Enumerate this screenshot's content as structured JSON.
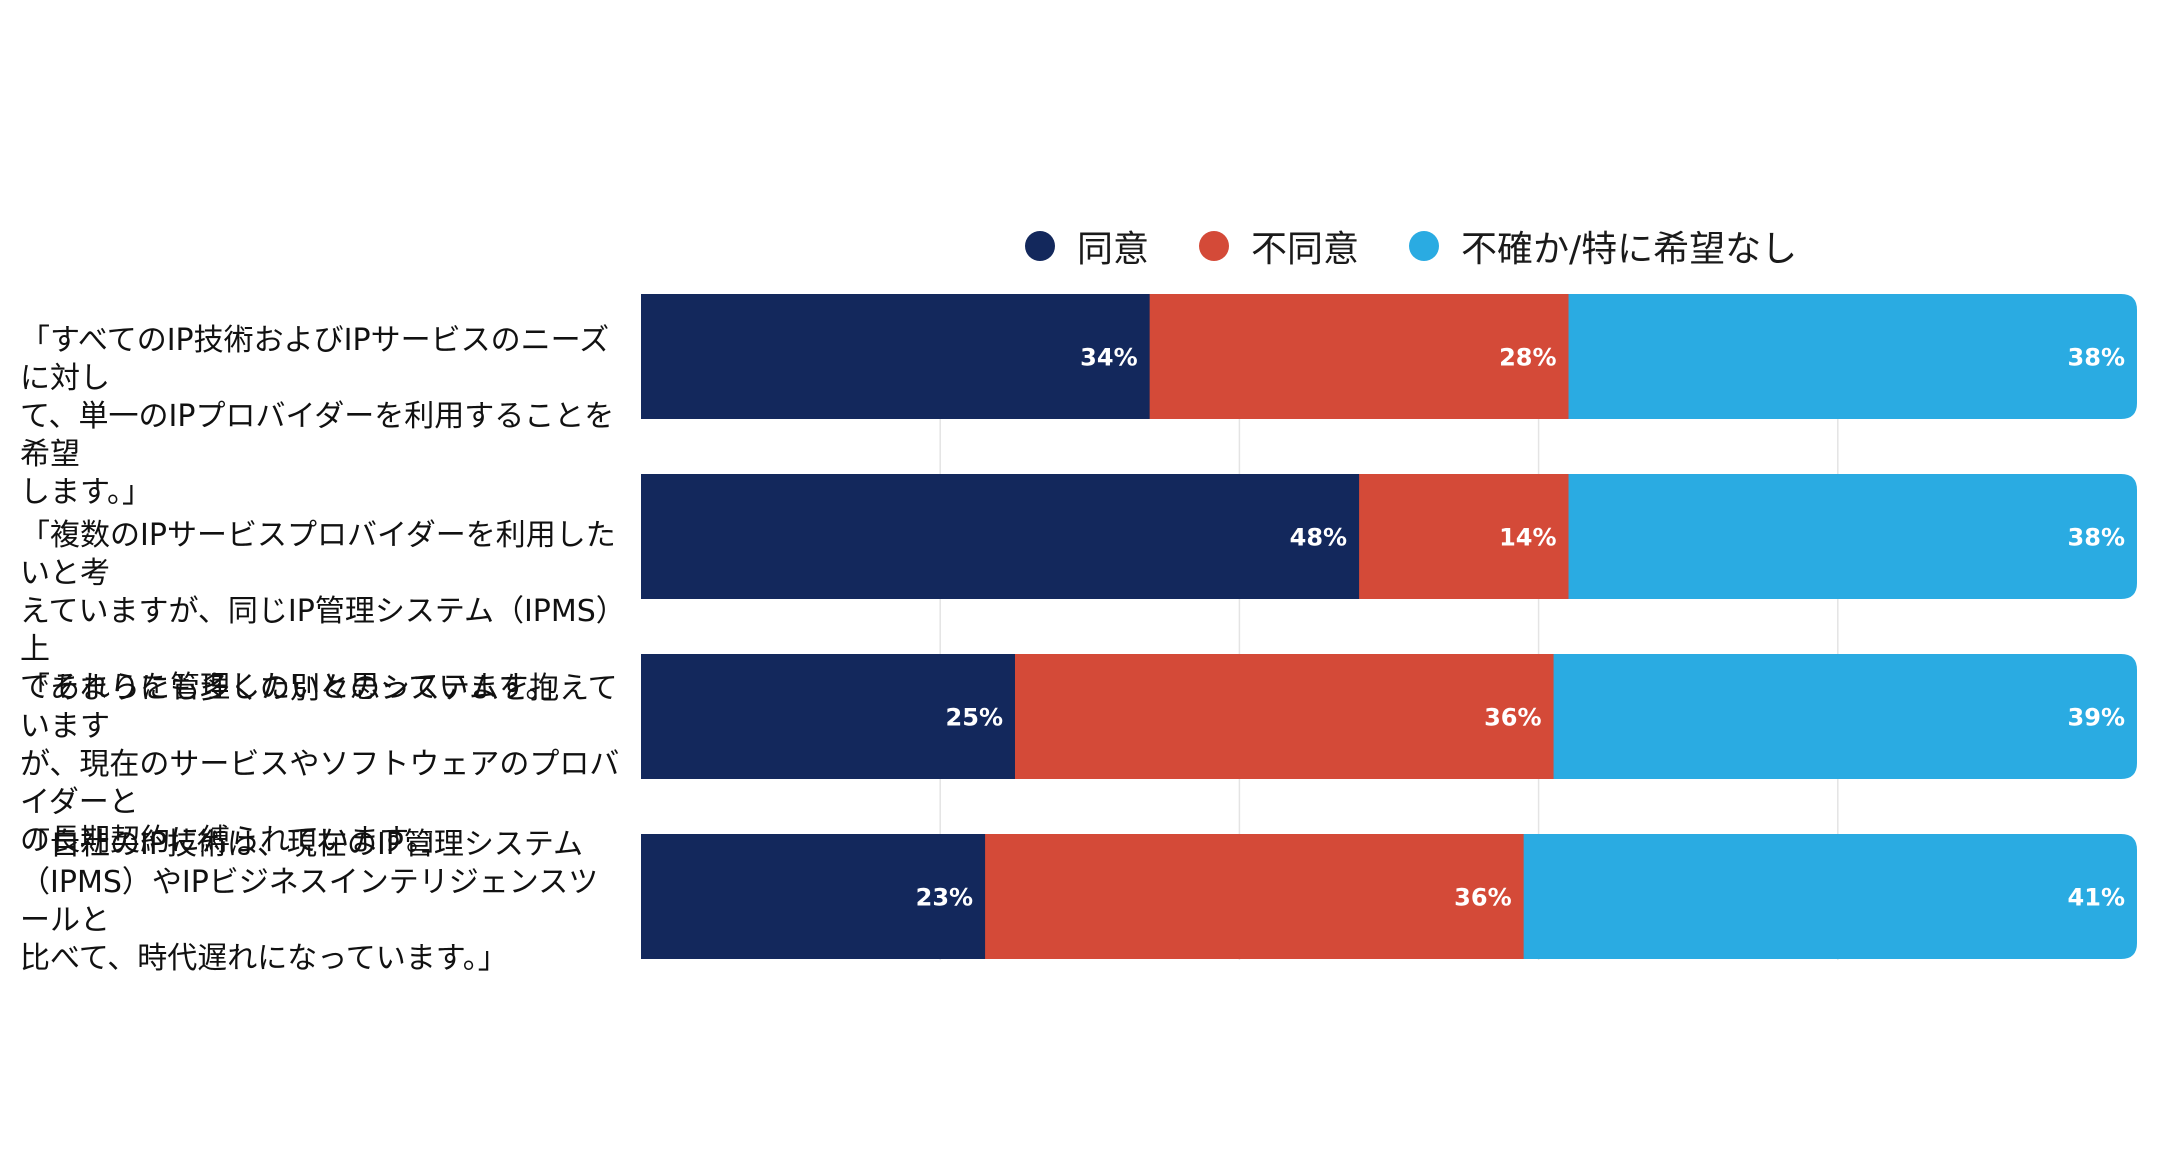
{
  "chart_data": {
    "type": "bar",
    "orientation": "horizontal",
    "stacked": true,
    "legend_position": "top",
    "grid": true,
    "xlim": [
      0,
      100
    ],
    "categories": [
      "「すべてのIP技術およびIPサービスのニーズに対し\nて、単一のIPプロバイダーを利用することを希望\nします。」",
      "「複数のIPサービスプロバイダーを利用したいと考\nえていますが、同じIP管理システム（IPMS）上\nでそれらを管理したいと思っています。」",
      "「あまりにも多くの別々のシステムを抱えています\nが、現在のサービスやソフトウェアのプロバイダーと\nの長期契約に縛られています。」",
      "「自社のIP技術は、現在のIP管理システム\n（IPMS）やIPビジネスインテリジェンスツールと\n比べて、時代遅れになっています。」"
    ],
    "series": [
      {
        "name": "同意",
        "color": "#13285c",
        "values": [
          34,
          48,
          25,
          23
        ]
      },
      {
        "name": "不同意",
        "color": "#d44a38",
        "values": [
          28,
          14,
          36,
          36
        ]
      },
      {
        "name": "不確か/特に希望なし",
        "color": "#2aabe2",
        "values": [
          38,
          38,
          39,
          41
        ]
      }
    ],
    "value_suffix": "%"
  }
}
